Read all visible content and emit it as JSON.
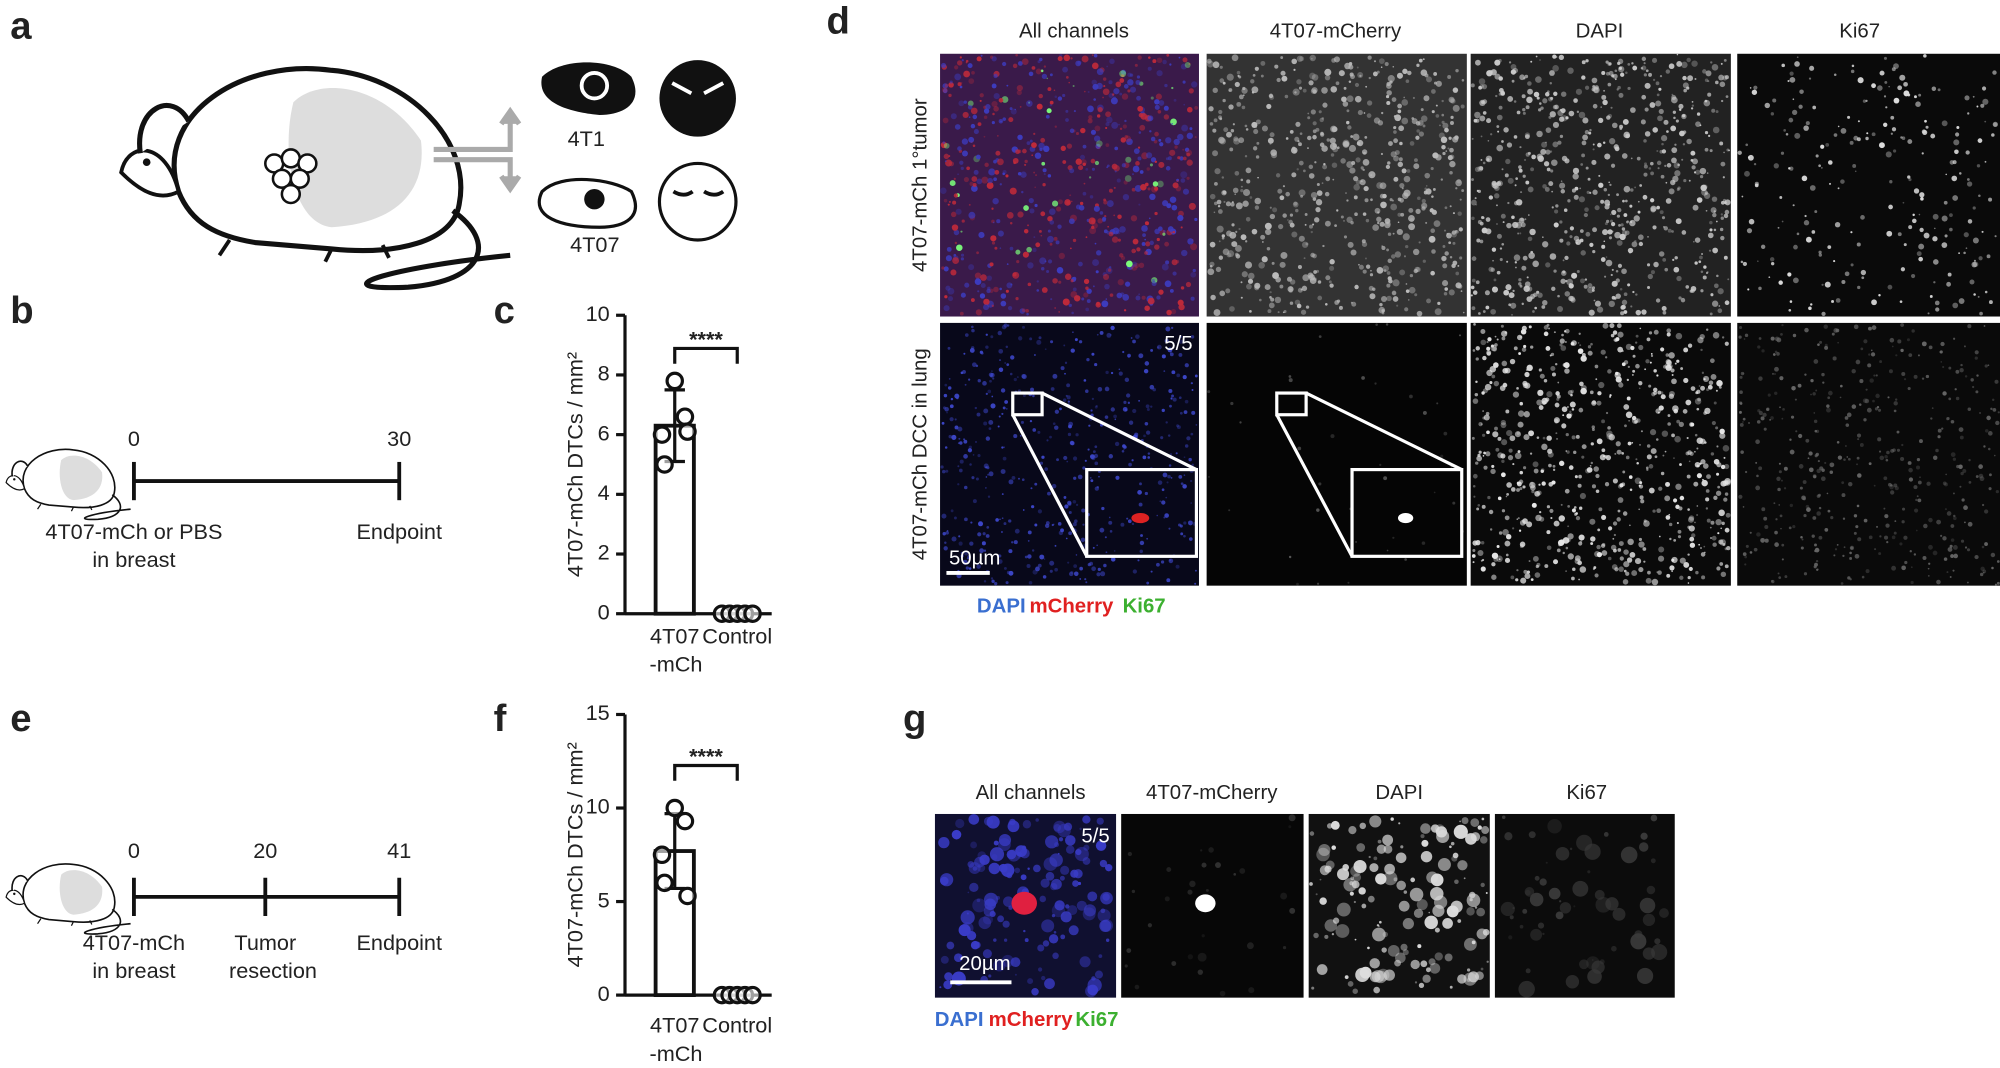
{
  "panel_labels": [
    "a",
    "b",
    "c",
    "d",
    "e",
    "f",
    "g"
  ],
  "panel_a": {
    "cell_labels": [
      "4T1",
      "4T07"
    ]
  },
  "panel_b": {
    "timeline": {
      "ticks": [
        0,
        30
      ],
      "start_label": [
        "4T07-mCh or PBS",
        "in breast"
      ],
      "end_label": "Endpoint"
    }
  },
  "panel_e": {
    "timeline": {
      "ticks": [
        0,
        20,
        41
      ],
      "start_label": [
        "4T07-mCh",
        "in breast"
      ],
      "mid_label": [
        "Tumor",
        "resection"
      ],
      "end_label": "Endpoint"
    }
  },
  "panel_d": {
    "column_headers": [
      "All channels",
      "4T07-mCherry",
      "DAPI",
      "Ki67"
    ],
    "row_labels": [
      "4T07-mCh 1°tumor",
      "4T07-mCh DCC in lung"
    ],
    "count": "5/5",
    "scale_bar": "50µm",
    "legend": [
      "DAPI",
      "mCherry",
      "Ki67"
    ]
  },
  "panel_g": {
    "column_headers": [
      "All channels",
      "4T07-mCherry",
      "DAPI",
      "Ki67"
    ],
    "count": "5/5",
    "scale_bar": "20µm",
    "legend": [
      "DAPI",
      "mCherry",
      "Ki67"
    ]
  },
  "chart_data": [
    {
      "type": "bar",
      "ylabel": "4T07-mCh DTCs / mm²",
      "categories": [
        [
          "4T07",
          "-mCh"
        ],
        [
          "Control"
        ]
      ],
      "values": [
        6.3,
        0
      ],
      "errors": [
        1.2,
        0
      ],
      "points": [
        [
          7.8,
          6.6,
          6.0,
          5.0,
          6.1
        ],
        [
          0,
          0,
          0,
          0,
          0
        ]
      ],
      "ylim": [
        0,
        10
      ],
      "yticks": [
        0,
        2,
        4,
        6,
        8,
        10
      ],
      "significance": "****",
      "color": "#ffffff"
    },
    {
      "type": "bar",
      "ylabel": "4T07-mCh DTCs / mm²",
      "categories": [
        [
          "4T07",
          "-mCh"
        ],
        [
          "Control"
        ]
      ],
      "values": [
        7.7,
        0
      ],
      "errors": [
        2.0,
        0
      ],
      "points": [
        [
          10,
          9.3,
          7.5,
          6.0,
          5.3
        ],
        [
          0,
          0,
          0,
          0,
          0
        ]
      ],
      "ylim": [
        0,
        15
      ],
      "yticks": [
        0,
        5,
        10,
        15
      ],
      "significance": "****",
      "color": "#ffffff"
    }
  ]
}
